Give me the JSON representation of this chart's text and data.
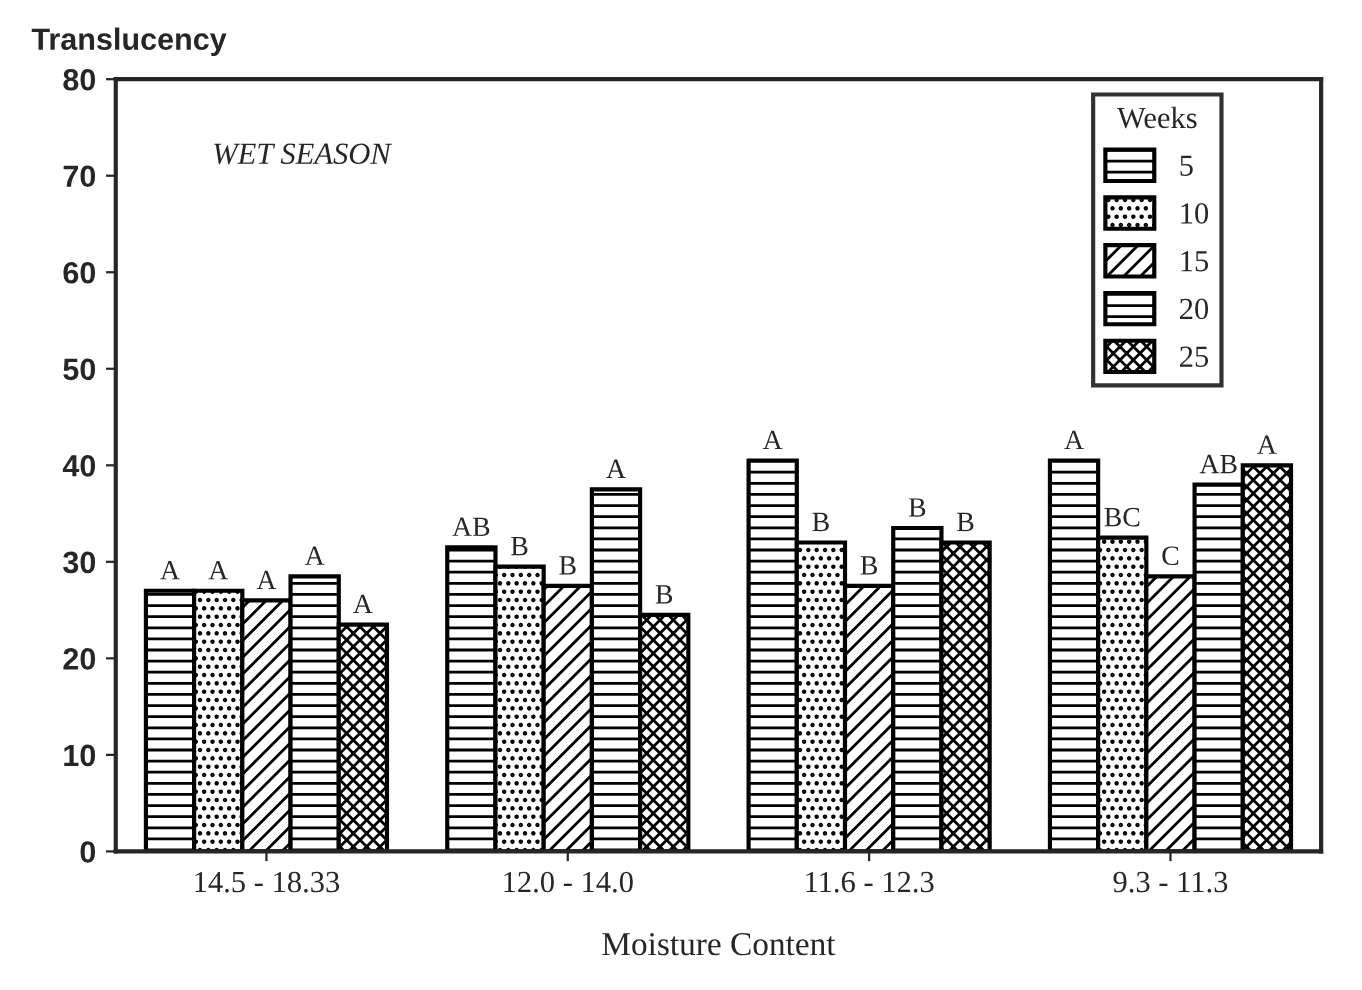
{
  "chart_data": {
    "type": "bar",
    "ylabel": "Translucency",
    "xlabel": "Moisture Content",
    "legend_title": "Weeks",
    "categories": [
      "14.5 - 18.33",
      "12.0 - 14.0",
      "11.6 - 12.3",
      "9.3 - 11.3"
    ],
    "series": [
      {
        "name": "5",
        "color": "#000000",
        "values": [
          27,
          31.5,
          40.5,
          40.5
        ],
        "value_labels": [
          "A",
          "AB",
          "A",
          "A"
        ]
      },
      {
        "name": "10",
        "color": "#000000",
        "values": [
          27,
          29.5,
          32,
          32.5
        ],
        "value_labels": [
          "A",
          "B",
          "B",
          "BC"
        ]
      },
      {
        "name": "15",
        "color": "#000000",
        "values": [
          26,
          27.5,
          27.5,
          28.5
        ],
        "value_labels": [
          "A",
          "B",
          "B",
          "C"
        ]
      },
      {
        "name": "20",
        "color": "#000000",
        "values": [
          28.5,
          37.5,
          33.5,
          38
        ],
        "value_labels": [
          "A",
          "A",
          "B",
          "AB"
        ]
      },
      {
        "name": "25",
        "color": "#000000",
        "values": [
          23.5,
          24.5,
          32,
          40
        ],
        "value_labels": [
          "A",
          "B",
          "B",
          "A"
        ]
      }
    ],
    "ylim": [
      0,
      80
    ],
    "yticks": [
      0,
      10,
      20,
      30,
      40,
      50,
      60,
      70,
      80
    ],
    "annotations": [
      "WET SEASON"
    ],
    "legend": "top right",
    "grid": false
  }
}
